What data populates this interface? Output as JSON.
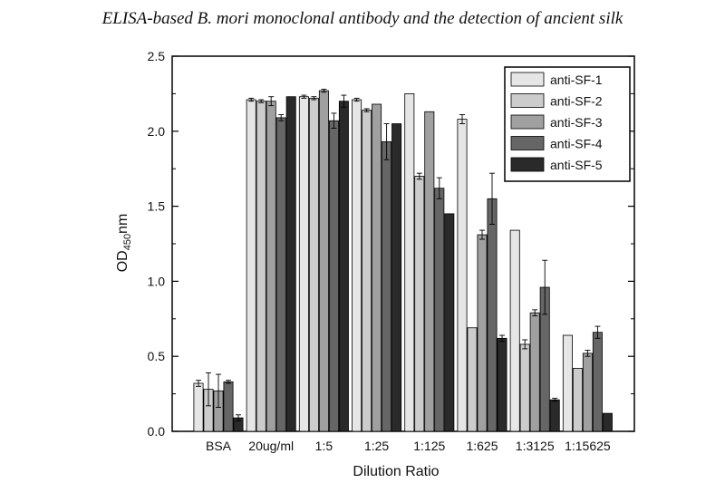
{
  "header": {
    "title": "ELISA-based B. mori monoclonal antibody and the detection of ancient silk"
  },
  "chart_data": {
    "type": "bar",
    "title": "",
    "xlabel": "Dilution Ratio",
    "ylabel_main": "OD",
    "ylabel_sub": "450",
    "ylabel_unit": "nm",
    "ylim": [
      0,
      2.5
    ],
    "yticks": [
      "0.0",
      "0.5",
      "1.0",
      "1.5",
      "2.0",
      "2.5"
    ],
    "legend_position": "top-right",
    "categories": [
      "BSA",
      "20ug/ml",
      "1:5",
      "1:25",
      "1:125",
      "1:625",
      "1:3125",
      "1:15625"
    ],
    "series": [
      {
        "name": "anti-SF-1",
        "color": "#e6e6e6",
        "values": [
          0.32,
          2.21,
          2.23,
          2.21,
          2.25,
          2.08,
          1.34,
          0.64
        ],
        "errors": [
          0.02,
          0.01,
          0.01,
          0.01,
          0.0,
          0.03,
          0.0,
          0.0
        ]
      },
      {
        "name": "anti-SF-2",
        "color": "#cccccc",
        "values": [
          0.28,
          2.2,
          2.22,
          2.14,
          1.7,
          0.69,
          0.58,
          0.42
        ],
        "errors": [
          0.11,
          0.01,
          0.01,
          0.01,
          0.02,
          0.0,
          0.03,
          0.0
        ]
      },
      {
        "name": "anti-SF-3",
        "color": "#a0a0a0",
        "values": [
          0.27,
          2.2,
          2.27,
          2.18,
          2.13,
          1.31,
          0.79,
          0.52
        ],
        "errors": [
          0.11,
          0.03,
          0.01,
          0.0,
          0.0,
          0.03,
          0.02,
          0.02
        ]
      },
      {
        "name": "anti-SF-4",
        "color": "#666666",
        "values": [
          0.33,
          2.09,
          2.07,
          1.93,
          1.62,
          1.55,
          0.96,
          0.66
        ],
        "errors": [
          0.01,
          0.02,
          0.05,
          0.12,
          0.07,
          0.17,
          0.18,
          0.04
        ]
      },
      {
        "name": "anti-SF-5",
        "color": "#2a2a2a",
        "values": [
          0.09,
          2.23,
          2.2,
          2.05,
          1.45,
          0.62,
          0.21,
          0.12
        ],
        "errors": [
          0.02,
          0.0,
          0.04,
          0.0,
          0.0,
          0.02,
          0.01,
          0.0
        ]
      }
    ]
  }
}
